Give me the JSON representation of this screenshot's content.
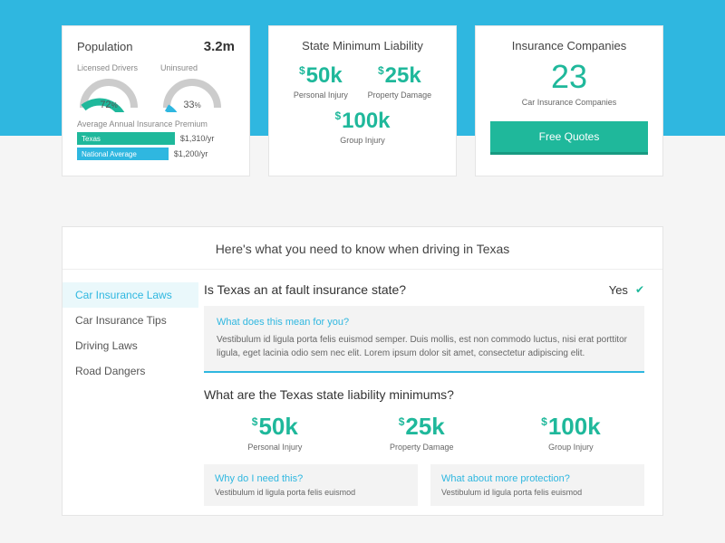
{
  "colors": {
    "accent_cyan": "#2fb7e0",
    "accent_teal": "#1fb89b",
    "gray_bg": "#f3f3f3",
    "text": "#444"
  },
  "population_card": {
    "title": "Population",
    "value": "3.2m",
    "gauges": [
      {
        "label": "Licensed Drivers",
        "percent": 72,
        "color": "#1fb89b"
      },
      {
        "label": "Uninsured",
        "percent": 33,
        "color": "#2fb7e0"
      }
    ],
    "premium_label": "Average Annual Insurance Premium",
    "bars": [
      {
        "label": "Texas",
        "amount": "$1,310/yr",
        "width_pct": 62,
        "color": "#1fb89b"
      },
      {
        "label": "National Average",
        "amount": "$1,200/yr",
        "width_pct": 58,
        "color": "#2fb7e0"
      }
    ]
  },
  "liability_card": {
    "title": "State Minimum Liability",
    "items": [
      {
        "value": "50k",
        "label": "Personal Injury"
      },
      {
        "value": "25k",
        "label": "Property Damage"
      }
    ],
    "bottom": {
      "value": "100k",
      "label": "Group Injury"
    }
  },
  "companies_card": {
    "title": "Insurance Companies",
    "count": "23",
    "sublabel": "Car Insurance Companies",
    "button": "Free Quotes"
  },
  "main": {
    "heading": "Here's what you need to know when driving in Texas",
    "tabs": [
      "Car Insurance Laws",
      "Car Insurance Tips",
      "Driving Laws",
      "Road Dangers"
    ],
    "active_tab": 0,
    "faq1": {
      "question": "Is Texas an at fault insurance state?",
      "answer": "Yes"
    },
    "info_box": {
      "title": "What does this mean for you?",
      "text": "Vestibulum id ligula porta felis euismod semper. Duis mollis, est non commodo luctus, nisi erat porttitor ligula, eget lacinia odio sem nec elit. Lorem ipsum dolor sit amet, consectetur adipiscing elit."
    },
    "faq2": "What are the Texas state liability minimums?",
    "liab2": [
      {
        "value": "50k",
        "label": "Personal Injury"
      },
      {
        "value": "25k",
        "label": "Property Damage"
      },
      {
        "value": "100k",
        "label": "Group Injury"
      }
    ],
    "two_col": [
      {
        "title": "Why do I need this?",
        "text": "Vestibulum id ligula porta felis euismod"
      },
      {
        "title": "What about more protection?",
        "text": "Vestibulum id ligula porta felis euismod"
      }
    ]
  }
}
